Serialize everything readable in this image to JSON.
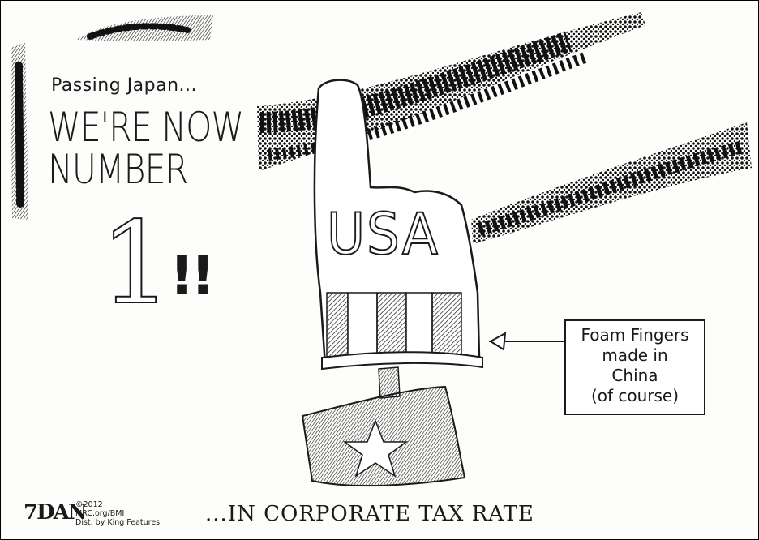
{
  "cartoon": {
    "subtitle": "Passing Japan...",
    "headline_line1": "WE'RE NOW",
    "headline_line2": "NUMBER",
    "big_number": "1",
    "exclamation": "!!",
    "foam_finger_text": "USA",
    "note_lines": [
      "Foam Fingers",
      "made in",
      "China",
      "(of course)"
    ],
    "caption": "...IN CORPORATE TAX RATE",
    "signature": "7DAN",
    "credit_lines": [
      "©2012",
      "MRC.org/BMI",
      "Dist. by King Features"
    ]
  },
  "colors": {
    "ink": "#1a1a1a",
    "paper": "#fdfdfb"
  },
  "icons": [
    "foam-finger-icon",
    "flag-star-icon",
    "arrow-icon",
    "fireworks-streak-icon"
  ]
}
